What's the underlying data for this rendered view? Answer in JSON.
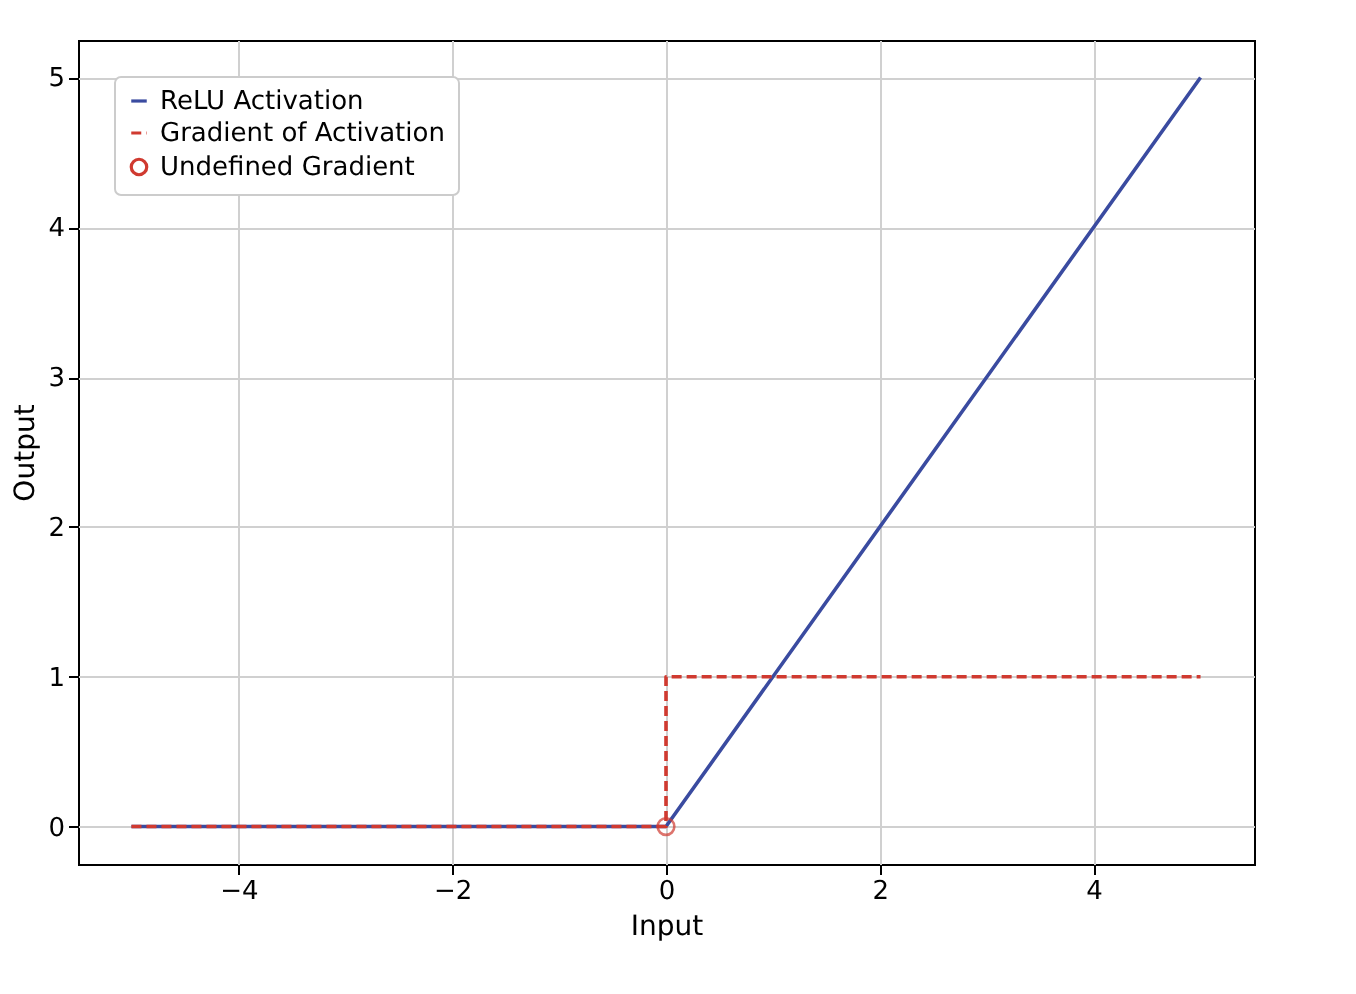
{
  "chart_data": {
    "type": "line",
    "xlabel": "Input",
    "ylabel": "Output",
    "xlim": [
      -5.5,
      5.5
    ],
    "ylim": [
      -0.25,
      5.25
    ],
    "xticks": [
      {
        "value": -4,
        "label": "−4"
      },
      {
        "value": -2,
        "label": "−2"
      },
      0,
      2,
      4
    ],
    "yticks": [
      0,
      1,
      2,
      3,
      4,
      5
    ],
    "grid": true,
    "legend": "top left",
    "series": [
      {
        "name": "ReLU Activation",
        "type": "line",
        "color": "#3a4ba0",
        "line_style": "solid",
        "marker": "none",
        "x": [
          -5,
          0,
          5
        ],
        "values": [
          0,
          0,
          5
        ]
      },
      {
        "name": "Gradient of Activation",
        "type": "line",
        "color": "#d03a30",
        "line_style": "dashed",
        "marker": "none",
        "x": [
          -5,
          0,
          0,
          5
        ],
        "values": [
          0,
          0,
          1,
          1
        ]
      },
      {
        "name": "Undefined Gradient",
        "type": "scatter",
        "color": "#d03a30",
        "marker": "circle",
        "x": [
          0
        ],
        "values": [
          0
        ]
      }
    ]
  }
}
